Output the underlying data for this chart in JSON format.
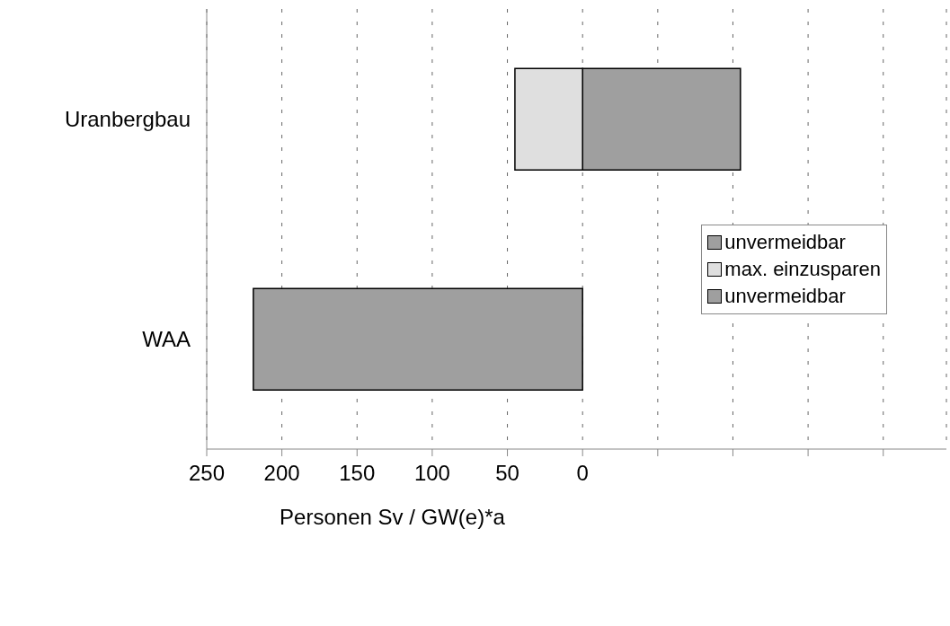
{
  "chart_data": {
    "type": "bar",
    "orientation": "horizontal",
    "stacked": true,
    "categories": [
      "Uranbergbau",
      "WAA"
    ],
    "series": [
      {
        "name": "unvermeidbar",
        "color": "#9f9f9f",
        "values": [
          105,
          null
        ]
      },
      {
        "name": "max. einzusparen",
        "color": "#dfdfdf",
        "values": [
          -45,
          null
        ]
      },
      {
        "name": "unvermeidbar",
        "color": "#9f9f9f",
        "values": [
          null,
          -219
        ]
      }
    ],
    "xlabel": "Personen Sv / GW(e)*a",
    "xlim": [
      -250,
      242
    ],
    "xticks": [
      {
        "value": -250,
        "label": "250"
      },
      {
        "value": -200,
        "label": "200"
      },
      {
        "value": -150,
        "label": "150"
      },
      {
        "value": -100,
        "label": "100"
      },
      {
        "value": -50,
        "label": "50"
      },
      {
        "value": 0,
        "label": "0"
      },
      {
        "value": 50,
        "label": null
      },
      {
        "value": 100,
        "label": null
      },
      {
        "value": 150,
        "label": null
      },
      {
        "value": 200,
        "label": null
      }
    ],
    "grid": "x",
    "legend": "right"
  }
}
